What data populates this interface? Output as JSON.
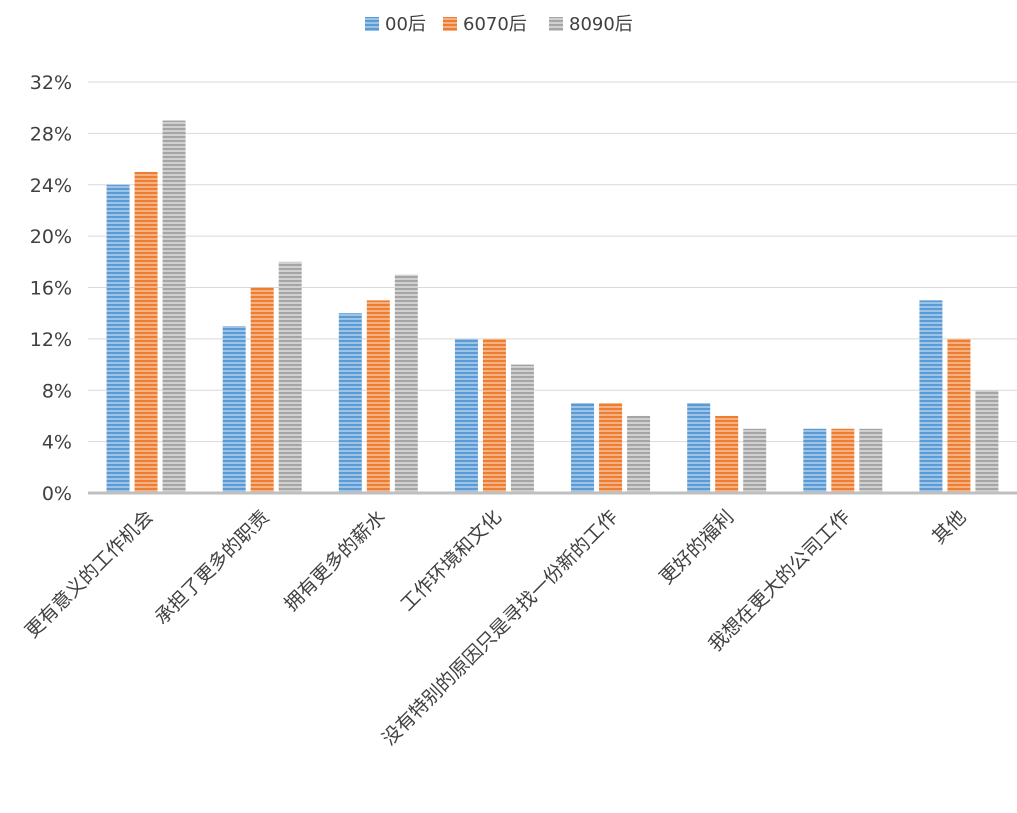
{
  "chart_data": {
    "type": "bar",
    "categories": [
      "更有意义的工作机会",
      "承担了更多的职责",
      "拥有更多的薪水",
      "工作环境和文化",
      "没有特别的原因只是寻找一份新的工作",
      "更好的福利",
      "我想在更大的公司工作",
      "其他"
    ],
    "series": [
      {
        "name": "00后",
        "color": "#5b9bd5",
        "values": [
          24,
          13,
          14,
          12,
          7,
          7,
          5,
          15
        ]
      },
      {
        "name": "6070后",
        "color": "#ed7d31",
        "values": [
          25,
          16,
          15,
          12,
          7,
          6,
          5,
          12
        ]
      },
      {
        "name": "8090后",
        "color": "#a5a5a5",
        "values": [
          29,
          18,
          17,
          10,
          6,
          5,
          5,
          8
        ]
      }
    ],
    "yticks": [
      "0%",
      "4%",
      "8%",
      "12%",
      "16%",
      "20%",
      "24%",
      "28%",
      "32%"
    ],
    "ylim": [
      0,
      32
    ],
    "grid": true,
    "legend_position": "top"
  }
}
